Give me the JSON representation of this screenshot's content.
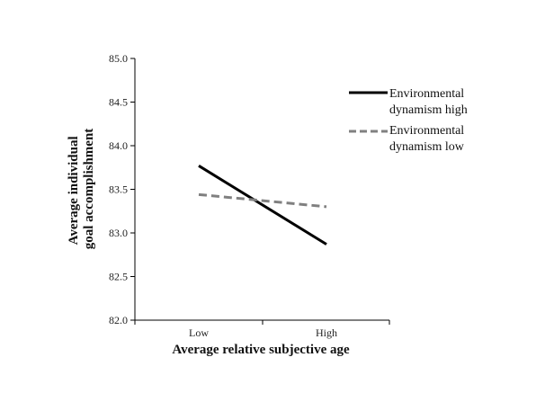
{
  "chart_data": {
    "type": "line",
    "title": "",
    "xlabel": "Average relative subjective age",
    "ylabel": [
      "Average individual",
      "goal accomplishment"
    ],
    "categories": [
      "Low",
      "High"
    ],
    "ylim": [
      82.0,
      85.0
    ],
    "yticks": [
      "82.0",
      "82.5",
      "83.0",
      "83.5",
      "84.0",
      "84.5",
      "85.0"
    ],
    "grid": false,
    "legend_position": "right",
    "series": [
      {
        "name_lines": [
          "Environmental",
          "dynamism high"
        ],
        "values": [
          83.77,
          82.87
        ],
        "color": "#000000",
        "dash": "solid"
      },
      {
        "name_lines": [
          "Environmental",
          "dynamism low"
        ],
        "values": [
          83.44,
          83.3
        ],
        "color": "#808080",
        "dash": "dashed"
      }
    ]
  }
}
